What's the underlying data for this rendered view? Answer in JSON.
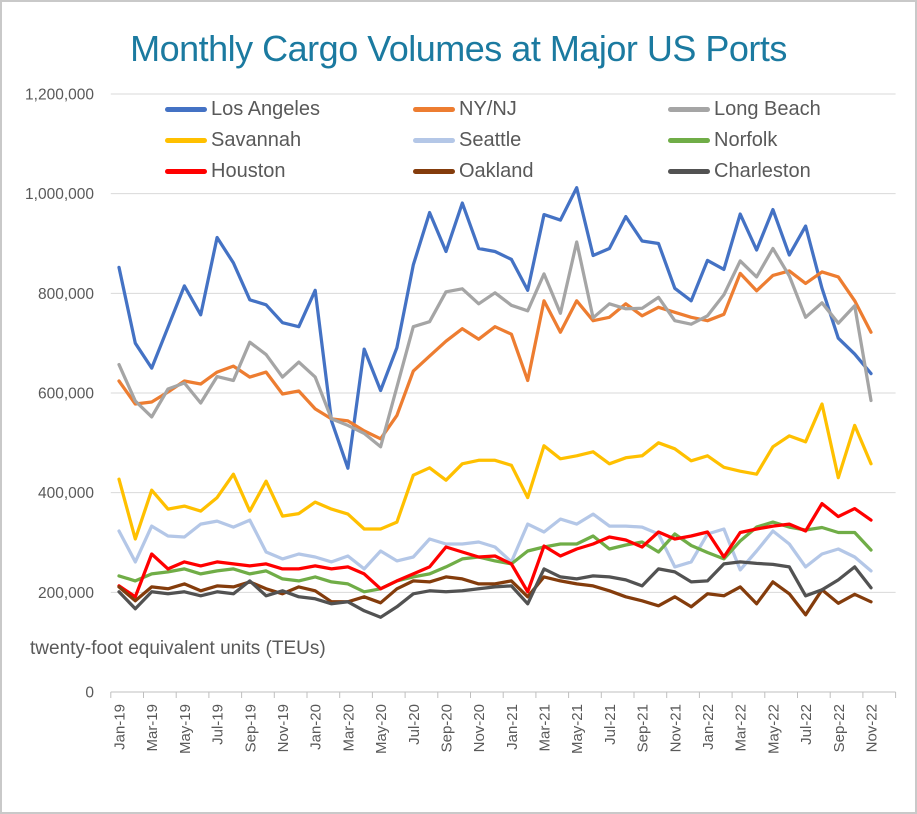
{
  "title": "Monthly Cargo Volumes at Major US Ports",
  "note": "twenty-foot equivalent units (TEUs)",
  "colors": {
    "title": "#1b7aa0",
    "axis_text": "#595959",
    "gridline": "#d9d9d9",
    "axis_line": "#bfbfbf",
    "background": "#ffffff",
    "border": "#c9c9c9"
  },
  "chart_data": {
    "type": "line",
    "title": "Monthly Cargo Volumes at Major US Ports",
    "xlabel": "",
    "ylabel": "twenty-foot equivalent units (TEUs)",
    "legend_position": "top-inside",
    "grid": "horizontal",
    "y_axis": {
      "min": 0,
      "max": 1200000,
      "step": 200000,
      "tick_labels": [
        "0",
        "200,000",
        "400,000",
        "600,000",
        "800,000",
        "1,000,000",
        "1,200,000"
      ]
    },
    "x_axis": {
      "label_every": 2,
      "first_label": "Jan-19",
      "last_label": "Nov-22"
    },
    "months": [
      "Jan-19",
      "Feb-19",
      "Mar-19",
      "Apr-19",
      "May-19",
      "Jun-19",
      "Jul-19",
      "Aug-19",
      "Sep-19",
      "Oct-19",
      "Nov-19",
      "Dec-19",
      "Jan-20",
      "Feb-20",
      "Mar-20",
      "Apr-20",
      "May-20",
      "Jun-20",
      "Jul-20",
      "Aug-20",
      "Sep-20",
      "Oct-20",
      "Nov-20",
      "Dec-20",
      "Jan-21",
      "Feb-21",
      "Mar-21",
      "Apr-21",
      "May-21",
      "Jun-21",
      "Jul-21",
      "Aug-21",
      "Sep-21",
      "Oct-21",
      "Nov-21",
      "Dec-21",
      "Jan-22",
      "Feb-22",
      "Mar-22",
      "Apr-22",
      "May-22",
      "Jun-22",
      "Jul-22",
      "Aug-22",
      "Sep-22",
      "Oct-22",
      "Nov-22"
    ],
    "series": [
      {
        "name": "Los Angeles",
        "color": "#4472c4",
        "values": [
          852000,
          700000,
          650000,
          732000,
          815000,
          757000,
          912000,
          861000,
          787000,
          777000,
          741000,
          733000,
          806000,
          544000,
          449000,
          688000,
          605000,
          691000,
          857000,
          962000,
          884000,
          981000,
          890000,
          884000,
          868000,
          806000,
          958000,
          947000,
          1012000,
          876000,
          890000,
          954000,
          905000,
          900000,
          810000,
          785000,
          866000,
          848000,
          959000,
          887000,
          968000,
          877000,
          935000,
          810000,
          710000,
          678000,
          639000
        ]
      },
      {
        "name": "NY/NJ",
        "color": "#ed7d31",
        "values": [
          624000,
          578000,
          582000,
          602000,
          624000,
          618000,
          642000,
          654000,
          632000,
          642000,
          598000,
          604000,
          568000,
          548000,
          544000,
          524000,
          508000,
          555000,
          644000,
          674000,
          704000,
          729000,
          708000,
          733000,
          718000,
          625000,
          785000,
          722000,
          785000,
          745000,
          752000,
          779000,
          755000,
          772000,
          762000,
          752000,
          745000,
          758000,
          840000,
          805000,
          836000,
          845000,
          820000,
          843000,
          833000,
          785000,
          722000
        ]
      },
      {
        "name": "Long Beach",
        "color": "#a5a5a5",
        "values": [
          657000,
          584000,
          552000,
          608000,
          620000,
          580000,
          633000,
          625000,
          702000,
          677000,
          632000,
          662000,
          632000,
          548000,
          535000,
          519000,
          492000,
          612000,
          733000,
          743000,
          803000,
          809000,
          779000,
          801000,
          776000,
          765000,
          839000,
          760000,
          903000,
          751000,
          779000,
          769000,
          770000,
          792000,
          745000,
          738000,
          755000,
          797000,
          865000,
          833000,
          890000,
          835000,
          752000,
          781000,
          740000,
          775000,
          585000
        ]
      },
      {
        "name": "Savannah",
        "color": "#ffc000",
        "values": [
          427000,
          307000,
          405000,
          367000,
          373000,
          363000,
          390000,
          437000,
          363000,
          423000,
          353000,
          358000,
          381000,
          367000,
          357000,
          327000,
          327000,
          341000,
          435000,
          450000,
          425000,
          458000,
          465000,
          465000,
          455000,
          390000,
          494000,
          468000,
          474000,
          482000,
          458000,
          470000,
          474000,
          500000,
          488000,
          464000,
          474000,
          451000,
          443000,
          437000,
          492000,
          514000,
          502000,
          578000,
          430000,
          535000,
          458000
        ]
      },
      {
        "name": "Seattle",
        "color": "#b4c7e7",
        "values": [
          323000,
          261000,
          333000,
          313000,
          311000,
          337000,
          343000,
          331000,
          345000,
          281000,
          267000,
          277000,
          271000,
          261000,
          273000,
          247000,
          283000,
          263000,
          271000,
          307000,
          297000,
          297000,
          301000,
          291000,
          261000,
          337000,
          321000,
          347000,
          337000,
          357000,
          333000,
          333000,
          331000,
          317000,
          251000,
          261000,
          317000,
          327000,
          245000,
          283000,
          323000,
          297000,
          251000,
          277000,
          287000,
          271000,
          243000
        ]
      },
      {
        "name": "Norfolk",
        "color": "#70ad47",
        "values": [
          233000,
          223000,
          237000,
          241000,
          247000,
          237000,
          243000,
          247000,
          237000,
          243000,
          227000,
          223000,
          231000,
          221000,
          217000,
          201000,
          207000,
          223000,
          231000,
          237000,
          251000,
          267000,
          271000,
          263000,
          257000,
          283000,
          291000,
          297000,
          297000,
          313000,
          287000,
          295000,
          301000,
          281000,
          317000,
          294000,
          280000,
          267000,
          303000,
          331000,
          341000,
          331000,
          325000,
          330000,
          320000,
          320000,
          285000
        ]
      },
      {
        "name": "Houston",
        "color": "#ff0000",
        "values": [
          213000,
          191000,
          277000,
          247000,
          261000,
          253000,
          261000,
          257000,
          253000,
          257000,
          247000,
          247000,
          253000,
          247000,
          251000,
          237000,
          207000,
          223000,
          237000,
          251000,
          291000,
          281000,
          271000,
          273000,
          257000,
          201000,
          293000,
          273000,
          287000,
          297000,
          311000,
          305000,
          291000,
          321000,
          307000,
          313000,
          321000,
          271000,
          320000,
          327000,
          333000,
          337000,
          323000,
          378000,
          352000,
          368000,
          345000
        ]
      },
      {
        "name": "Oakland",
        "color": "#843c0c",
        "values": [
          211000,
          183000,
          211000,
          207000,
          217000,
          203000,
          213000,
          211000,
          221000,
          207000,
          197000,
          211000,
          203000,
          181000,
          181000,
          191000,
          179000,
          207000,
          223000,
          221000,
          231000,
          227000,
          217000,
          217000,
          223000,
          191000,
          231000,
          223000,
          217000,
          213000,
          203000,
          191000,
          183000,
          173000,
          191000,
          171000,
          197000,
          193000,
          211000,
          177000,
          221000,
          197000,
          155000,
          205000,
          178000,
          196000,
          181000
        ]
      },
      {
        "name": "Charleston",
        "color": "#525252",
        "values": [
          201000,
          167000,
          201000,
          197000,
          201000,
          193000,
          201000,
          197000,
          223000,
          193000,
          203000,
          191000,
          187000,
          177000,
          181000,
          163000,
          150000,
          171000,
          197000,
          203000,
          201000,
          203000,
          207000,
          211000,
          213000,
          177000,
          247000,
          231000,
          227000,
          233000,
          231000,
          225000,
          213000,
          247000,
          241000,
          221000,
          223000,
          257000,
          261000,
          258000,
          256000,
          251000,
          193000,
          205000,
          225000,
          251000,
          209000
        ]
      }
    ]
  }
}
